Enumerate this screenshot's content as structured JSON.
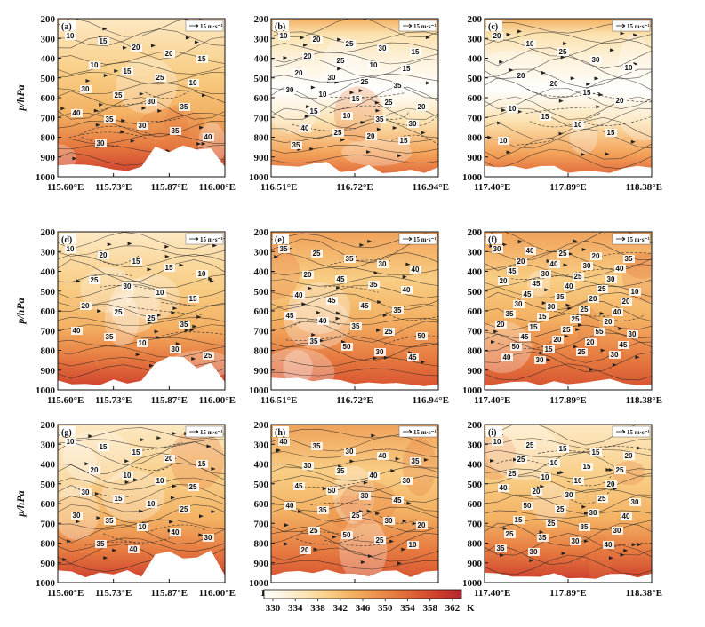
{
  "chart_data": [
    {
      "type": "heatmap",
      "panel_label": "(a)",
      "x_ticks": [
        "115.60°E",
        "115.73°E",
        "115.87°E",
        "116.00°E"
      ],
      "y_label": "p/hPa",
      "y_ticks": [
        "200",
        "300",
        "400",
        "500",
        "600",
        "700",
        "800",
        "900",
        "1000"
      ],
      "ylim": [
        1000,
        200
      ],
      "reference_vector": "15 m·s⁻¹",
      "contour_labels": [
        "10",
        "15",
        "20",
        "20",
        "15",
        "10",
        "15",
        "25",
        "10",
        "30",
        "25",
        "30",
        "35",
        "40",
        "35",
        "30",
        "35",
        "40",
        "30"
      ],
      "color_pattern": "warm-bottom"
    },
    {
      "type": "heatmap",
      "panel_label": "(b)",
      "x_ticks": [
        "116.51°E",
        "116.72°E",
        "116.94°E"
      ],
      "y_label": "",
      "y_ticks": [
        "200",
        "300",
        "400",
        "500",
        "600",
        "700",
        "800",
        "900",
        "1000"
      ],
      "ylim": [
        1000,
        200
      ],
      "reference_vector": "15 m·s⁻¹",
      "contour_labels": [
        "10",
        "20",
        "25",
        "30",
        "15",
        "20",
        "25",
        "10",
        "15",
        "20",
        "30",
        "25",
        "35",
        "30",
        "10",
        "15",
        "25",
        "20",
        "15",
        "10",
        "35",
        "30",
        "40",
        "25",
        "20",
        "15",
        "35"
      ],
      "color_pattern": "white-band"
    },
    {
      "type": "heatmap",
      "panel_label": "(c)",
      "x_ticks": [
        "117.40°E",
        "117.89°E",
        "118.38°E"
      ],
      "y_label": "",
      "y_ticks": [
        "200",
        "300",
        "400",
        "500",
        "600",
        "700",
        "800",
        "900",
        "1000"
      ],
      "ylim": [
        1000,
        200
      ],
      "reference_vector": "15 m·s⁻¹",
      "contour_labels": [
        "20",
        "10",
        "25",
        "30",
        "10",
        "20",
        "20",
        "15",
        "20",
        "10",
        "15",
        "10",
        "15",
        "10"
      ],
      "color_pattern": "white-band"
    },
    {
      "type": "heatmap",
      "panel_label": "(d)",
      "x_ticks": [
        "115.60°E",
        "115.73°E",
        "115.87°E",
        "116.00°E"
      ],
      "y_label": "p/hPa",
      "y_ticks": [
        "200",
        "300",
        "400",
        "500",
        "600",
        "700",
        "800",
        "900",
        "1000"
      ],
      "ylim": [
        1000,
        200
      ],
      "reference_vector": "15 m·s⁻¹",
      "contour_labels": [
        "10",
        "20",
        "15",
        "15",
        "10",
        "25",
        "30",
        "10",
        "15",
        "20",
        "25",
        "25",
        "35",
        "40",
        "35",
        "10",
        "30",
        "25"
      ],
      "color_pattern": "warm-bottom"
    },
    {
      "type": "heatmap",
      "panel_label": "(e)",
      "x_ticks": [
        "116.51°E",
        "116.72°E",
        "116.94°E"
      ],
      "y_label": "",
      "y_ticks": [
        "200",
        "300",
        "400",
        "500",
        "600",
        "700",
        "800",
        "900",
        "1000"
      ],
      "ylim": [
        1000,
        200
      ],
      "reference_vector": "15 m·s⁻¹",
      "contour_labels": [
        "35",
        "25",
        "35",
        "30",
        "40",
        "20",
        "45",
        "35",
        "40",
        "40",
        "45",
        "45",
        "35",
        "45",
        "40",
        "35",
        "25",
        "50",
        "35",
        "50",
        "30",
        "45"
      ],
      "color_pattern": "warm-full"
    },
    {
      "type": "heatmap",
      "panel_label": "(f)",
      "x_ticks": [
        "117.40°E",
        "117.89°E",
        "118.38°E"
      ],
      "y_label": "",
      "y_ticks": [
        "200",
        "300",
        "400",
        "500",
        "600",
        "700",
        "800",
        "900",
        "1000"
      ],
      "ylim": [
        1000,
        200
      ],
      "reference_vector": "15 m·s⁻¹",
      "contour_labels": [
        "30",
        "40",
        "25",
        "20",
        "35",
        "20",
        "40",
        "30",
        "40",
        "45",
        "30",
        "25",
        "30",
        "20",
        "45",
        "40",
        "25",
        "10",
        "45",
        "35",
        "20",
        "20",
        "30",
        "30",
        "25",
        "40",
        "35",
        "15",
        "25",
        "20",
        "20",
        "15",
        "25",
        "55",
        "30",
        "45",
        "20",
        "20",
        "45",
        "50",
        "15",
        "25",
        "30",
        "40",
        "30"
      ],
      "color_pattern": "warm-full"
    },
    {
      "type": "heatmap",
      "panel_label": "(g)",
      "x_ticks": [
        "115.60°E",
        "115.73°E",
        "115.87°E",
        "116.00°E"
      ],
      "y_label": "p/hPa",
      "y_ticks": [
        "200",
        "300",
        "400",
        "500",
        "600",
        "700",
        "800",
        "900",
        "1000"
      ],
      "ylim": [
        1000,
        200
      ],
      "reference_vector": "15 m·s⁻¹",
      "contour_labels": [
        "10",
        "15",
        "15",
        "20",
        "15",
        "20",
        "10",
        "10",
        "25",
        "30",
        "15",
        "10",
        "25",
        "30",
        "35",
        "10",
        "40",
        "30",
        "35",
        "40"
      ],
      "color_pattern": "warm-bottom"
    },
    {
      "type": "heatmap",
      "panel_label": "(h)",
      "x_ticks": [
        "116.51°E",
        "116.72°E",
        "116.94°E"
      ],
      "y_label": "",
      "y_ticks": [
        "200",
        "300",
        "400",
        "500",
        "600",
        "700",
        "800",
        "900",
        "1000"
      ],
      "ylim": [
        1000,
        200
      ],
      "reference_vector": "15 m·s⁻¹",
      "contour_labels": [
        "40",
        "35",
        "30",
        "40",
        "35",
        "30",
        "35",
        "40",
        "30",
        "45",
        "50",
        "30",
        "45",
        "40",
        "35",
        "25",
        "30",
        "20",
        "25",
        "50",
        "25",
        "10",
        "20"
      ],
      "color_pattern": "warm-full"
    },
    {
      "type": "heatmap",
      "panel_label": "(i)",
      "x_ticks": [
        "117.40°E",
        "117.89°E",
        "118.38°E"
      ],
      "y_label": "",
      "y_ticks": [
        "200",
        "300",
        "400",
        "500",
        "600",
        "700",
        "800",
        "900",
        "1000"
      ],
      "ylim": [
        1000,
        200
      ],
      "reference_vector": "15 m·s⁻¹",
      "contour_labels": [
        "10",
        "25",
        "15",
        "15",
        "20",
        "25",
        "10",
        "15",
        "25",
        "25",
        "10",
        "10",
        "20",
        "40",
        "20",
        "30",
        "25",
        "30",
        "50",
        "25",
        "30",
        "40",
        "15",
        "25",
        "35",
        "30",
        "25",
        "35",
        "30",
        "40",
        "35",
        "30"
      ],
      "color_pattern": "warm-bottom"
    }
  ],
  "colorbar": {
    "ticks": [
      "330",
      "334",
      "338",
      "342",
      "346",
      "350",
      "354",
      "358",
      "362"
    ],
    "unit": "K",
    "colors": [
      "#ffffff",
      "#fdf1d9",
      "#fbe2b0",
      "#f8cd84",
      "#f3b163",
      "#ee9550",
      "#e67a40",
      "#dc5b33",
      "#cc3c2d",
      "#b52730"
    ]
  }
}
